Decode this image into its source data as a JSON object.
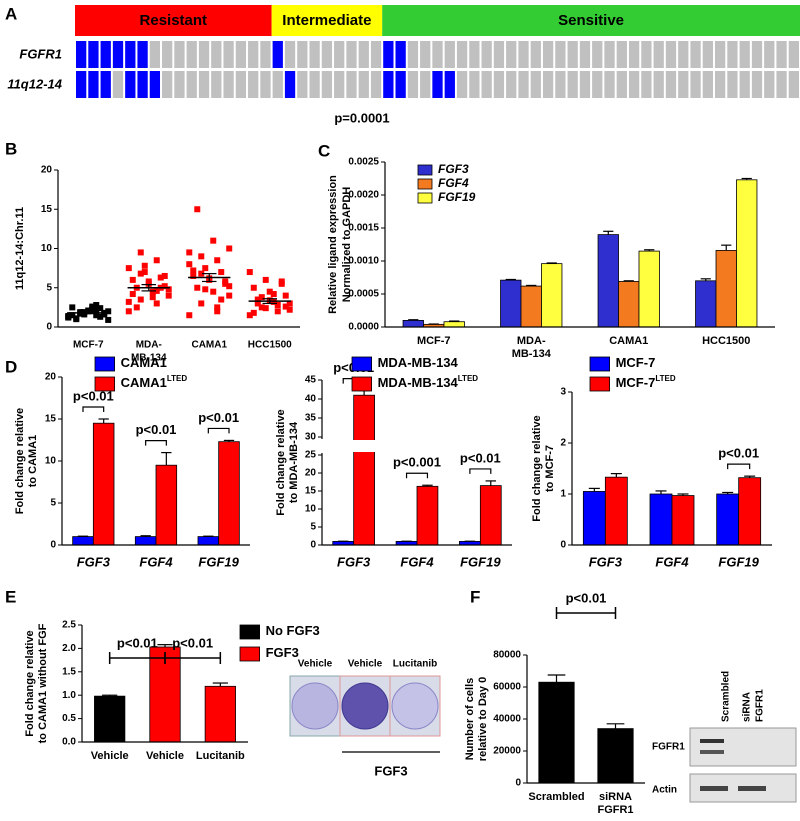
{
  "panel_labels": [
    "A",
    "B",
    "C",
    "D",
    "E",
    "F"
  ],
  "chart_data": [
    {
      "type": "oncoprint",
      "groups": [
        {
          "label": "Resistant",
          "color": "#ff0000"
        },
        {
          "label": "Intermediate",
          "color": "#ffff00"
        },
        {
          "label": "Sensitive",
          "color": "#33cc33"
        }
      ],
      "rows": [
        {
          "name": "FGFR1",
          "values": [
            1,
            1,
            1,
            1,
            1,
            1,
            0,
            0,
            0,
            0,
            0,
            0,
            0,
            0,
            0,
            0,
            1,
            0,
            0,
            0,
            0,
            0,
            0,
            0,
            0,
            1,
            1,
            0,
            0,
            0,
            0,
            0,
            0,
            0,
            0,
            0,
            0,
            0,
            0,
            0,
            0,
            0,
            0,
            0,
            0,
            0,
            0,
            0,
            0,
            0,
            0,
            0,
            0,
            0,
            0,
            0,
            0,
            0,
            0
          ]
        },
        {
          "name": "11q12-14",
          "values": [
            1,
            1,
            1,
            0,
            1,
            1,
            1,
            0,
            0,
            0,
            0,
            0,
            0,
            0,
            0,
            0,
            0,
            1,
            0,
            0,
            0,
            0,
            0,
            0,
            0,
            1,
            1,
            0,
            0,
            1,
            1,
            0,
            0,
            0,
            0,
            0,
            0,
            0,
            0,
            0,
            0,
            0,
            0,
            0,
            0,
            0,
            0,
            0,
            0,
            0,
            0,
            0,
            0,
            0,
            0,
            0,
            0,
            0,
            0
          ]
        }
      ],
      "altered_color": "#0000ff",
      "unaltered_color": "#c0c0c0",
      "annotation": "p=0.0001"
    },
    {
      "type": "scatter",
      "ylabel": "11q12-14:Chr.11",
      "ylim": [
        0,
        20
      ],
      "yticks": [
        0,
        5,
        10,
        15,
        20
      ],
      "categories": [
        "MCF-7",
        [
          "MDA-",
          "MB-134"
        ],
        "CAMA1",
        "HCC1500"
      ],
      "groups": [
        {
          "color": "#000000",
          "values": [
            1.2,
            1.5,
            1.8,
            2.0,
            2.3,
            1.0,
            1.6,
            2.1,
            2.5,
            1.3,
            1.9,
            1.4,
            2.2,
            1.7,
            0.9,
            2.6,
            1.1,
            1.8,
            2.0,
            1.5,
            2.4,
            1.6,
            1.3,
            2.8,
            1.9
          ],
          "mean": 1.8,
          "sem": 0.1
        },
        {
          "color": "#ff0000",
          "values": [
            2.0,
            3.0,
            3.5,
            4.0,
            4.5,
            5.0,
            5.2,
            5.5,
            6.0,
            6.3,
            7.0,
            7.5,
            8.5,
            9.5,
            4.8,
            3.8,
            2.5,
            6.5,
            5.8,
            4.2,
            5.0,
            7.8,
            3.2,
            4.6,
            6.8
          ],
          "mean": 5.0,
          "sem": 0.4
        },
        {
          "color": "#ff0000",
          "values": [
            1.5,
            2.5,
            3.0,
            4.0,
            4.5,
            5.0,
            5.5,
            6.0,
            6.5,
            7.0,
            7.5,
            8.0,
            8.5,
            9.0,
            10.0,
            11.0,
            15.0,
            5.8,
            6.2,
            7.2,
            3.5,
            4.8,
            9.5,
            2.0,
            6.8,
            5.2
          ],
          "mean": 6.3,
          "sem": 0.5
        },
        {
          "color": "#ff0000",
          "values": [
            1.5,
            2.0,
            2.5,
            3.0,
            3.2,
            3.5,
            4.0,
            4.5,
            5.0,
            5.5,
            6.0,
            7.0,
            2.8,
            3.8,
            2.2,
            4.2,
            3.0,
            2.6,
            3.4,
            1.8,
            5.8,
            2.4
          ],
          "mean": 3.3,
          "sem": 0.3
        }
      ]
    },
    {
      "type": "bar",
      "ylabel": [
        "Relative ligand expression",
        "Normalized to GAPDH"
      ],
      "ylim": [
        0,
        0.0025
      ],
      "yticks": [
        {
          "value": 0,
          "label": "0.0000"
        },
        {
          "value": 0.0005,
          "label": "0.0005"
        },
        {
          "value": 0.001,
          "label": "0.0010"
        },
        {
          "value": 0.0015,
          "label": "0.0015"
        },
        {
          "value": 0.002,
          "label": "0.0020"
        },
        {
          "value": 0.0025,
          "label": "0.0025"
        }
      ],
      "categories": [
        "MCF-7",
        [
          "MDA-",
          "MB-134"
        ],
        "CAMA1",
        "HCC1500"
      ],
      "series": [
        {
          "name": "FGF3",
          "color": "#2f2fd0",
          "values": [
            0.0001,
            0.00071,
            0.0014,
            0.0007
          ],
          "errors": [
            1e-05,
            1e-05,
            5e-05,
            3e-05
          ]
        },
        {
          "name": "FGF4",
          "color": "#f47a20",
          "values": [
            4e-05,
            0.00062,
            0.00069,
            0.00116
          ],
          "errors": [
            5e-06,
            1e-05,
            1e-05,
            8e-05
          ]
        },
        {
          "name": "FGF19",
          "color": "#ffff40",
          "values": [
            8e-05,
            0.00096,
            0.00115,
            0.00223
          ],
          "errors": [
            1e-05,
            1e-05,
            2e-05,
            2e-05
          ]
        }
      ],
      "legend": true
    },
    {
      "type": "bar",
      "ylabel": [
        "Fold change relative",
        "to CAMA1"
      ],
      "ylim": [
        0,
        20
      ],
      "yticks": [
        0,
        5,
        10,
        15,
        20
      ],
      "categories": [
        "FGF3",
        "FGF4",
        "FGF19"
      ],
      "series": [
        {
          "name": "CAMA1",
          "color": "#0000ff",
          "values": [
            1,
            1,
            1
          ],
          "errors": [
            0.05,
            0.1,
            0.05
          ]
        },
        {
          "name": "CAMA1",
          "superscript": "LTED",
          "color": "#ff0000",
          "values": [
            14.5,
            9.5,
            12.3
          ],
          "errors": [
            0.5,
            1.5,
            0.15
          ]
        }
      ],
      "p_values": [
        "p<0.01",
        "p<0.01",
        "p<0.01"
      ],
      "legend": true
    },
    {
      "type": "bar",
      "ylabel": [
        "Fold change relative",
        "to MDA-MB-134"
      ],
      "ylim": [
        0,
        45
      ],
      "axis_break": [
        25,
        30
      ],
      "yticks": [
        0,
        5,
        10,
        15,
        20,
        25,
        30,
        35,
        40,
        45
      ],
      "categories": [
        "FGF3",
        "FGF4",
        "FGF19"
      ],
      "series": [
        {
          "name": "MDA-MB-134",
          "color": "#0000ff",
          "values": [
            1,
            1,
            1
          ],
          "errors": [
            0.05,
            0.05,
            0.05
          ]
        },
        {
          "name": "MDA-MB-134",
          "superscript": "LTED",
          "color": "#ff0000",
          "values": [
            41,
            16.3,
            16.5
          ],
          "errors": [
            1.2,
            0.3,
            1.3
          ]
        }
      ],
      "p_values": [
        "p<0.01",
        "p<0.001",
        "p<0.01"
      ],
      "legend": true
    },
    {
      "type": "bar",
      "ylabel": [
        "Fold change relative",
        "to MCF-7"
      ],
      "ylim": [
        0,
        3
      ],
      "yticks": [
        0,
        1,
        2,
        3
      ],
      "categories": [
        "FGF3",
        "FGF4",
        "FGF19"
      ],
      "series": [
        {
          "name": "MCF-7",
          "color": "#0000ff",
          "values": [
            1.05,
            1.0,
            1.0
          ],
          "errors": [
            0.06,
            0.06,
            0.03
          ]
        },
        {
          "name": "MCF-7",
          "superscript": "LTED",
          "color": "#ff0000",
          "values": [
            1.33,
            0.97,
            1.32
          ],
          "errors": [
            0.07,
            0.03,
            0.03
          ]
        }
      ],
      "p_values": [
        null,
        null,
        "p<0.01"
      ],
      "legend": true
    },
    {
      "type": "bar",
      "ylabel": [
        "Fold change relative",
        "to CAMA1  without FGF"
      ],
      "ylim": [
        0,
        2.5
      ],
      "yticks": [
        {
          "value": 0,
          "label": "0.0"
        },
        0.5,
        {
          "value": 1,
          "label": "1.0"
        },
        1.5,
        {
          "value": 2,
          "label": "2.0"
        },
        2.5
      ],
      "categories": [
        "Vehicle",
        "Vehicle",
        "Lucitanib"
      ],
      "series": [
        {
          "name": "No FGF3",
          "color": "#000000",
          "values": [
            0.98,
            null,
            null
          ],
          "errors": [
            0.02,
            null,
            null
          ]
        },
        {
          "name": "FGF3",
          "color": "#ff0000",
          "values": [
            null,
            2.03,
            1.19
          ],
          "errors": [
            null,
            0.05,
            0.07
          ]
        }
      ],
      "comparisons": [
        "p<0.01",
        "p<0.01"
      ],
      "legend": true
    },
    {
      "type": "bar",
      "ylabel": [
        "Number of cells",
        "relative to Day 0"
      ],
      "ylim": [
        0,
        80000
      ],
      "yticks": [
        0,
        20000,
        40000,
        60000,
        80000
      ],
      "categories": [
        "Scrambled",
        [
          "siRNA",
          "FGFR1"
        ]
      ],
      "values": [
        63000,
        34000
      ],
      "errors": [
        4500,
        3000
      ],
      "color": "#000000",
      "comparisons": [
        "p<0.01"
      ]
    }
  ],
  "colony_assay": {
    "labels": [
      "Vehicle",
      "Vehicle",
      "Lucitanib"
    ],
    "group_label": "FGF3"
  },
  "western_blot": {
    "lanes": [
      "Scrambled",
      [
        "siRNA",
        "FGFR1"
      ]
    ],
    "rows": [
      "FGFR1",
      "Actin"
    ]
  }
}
